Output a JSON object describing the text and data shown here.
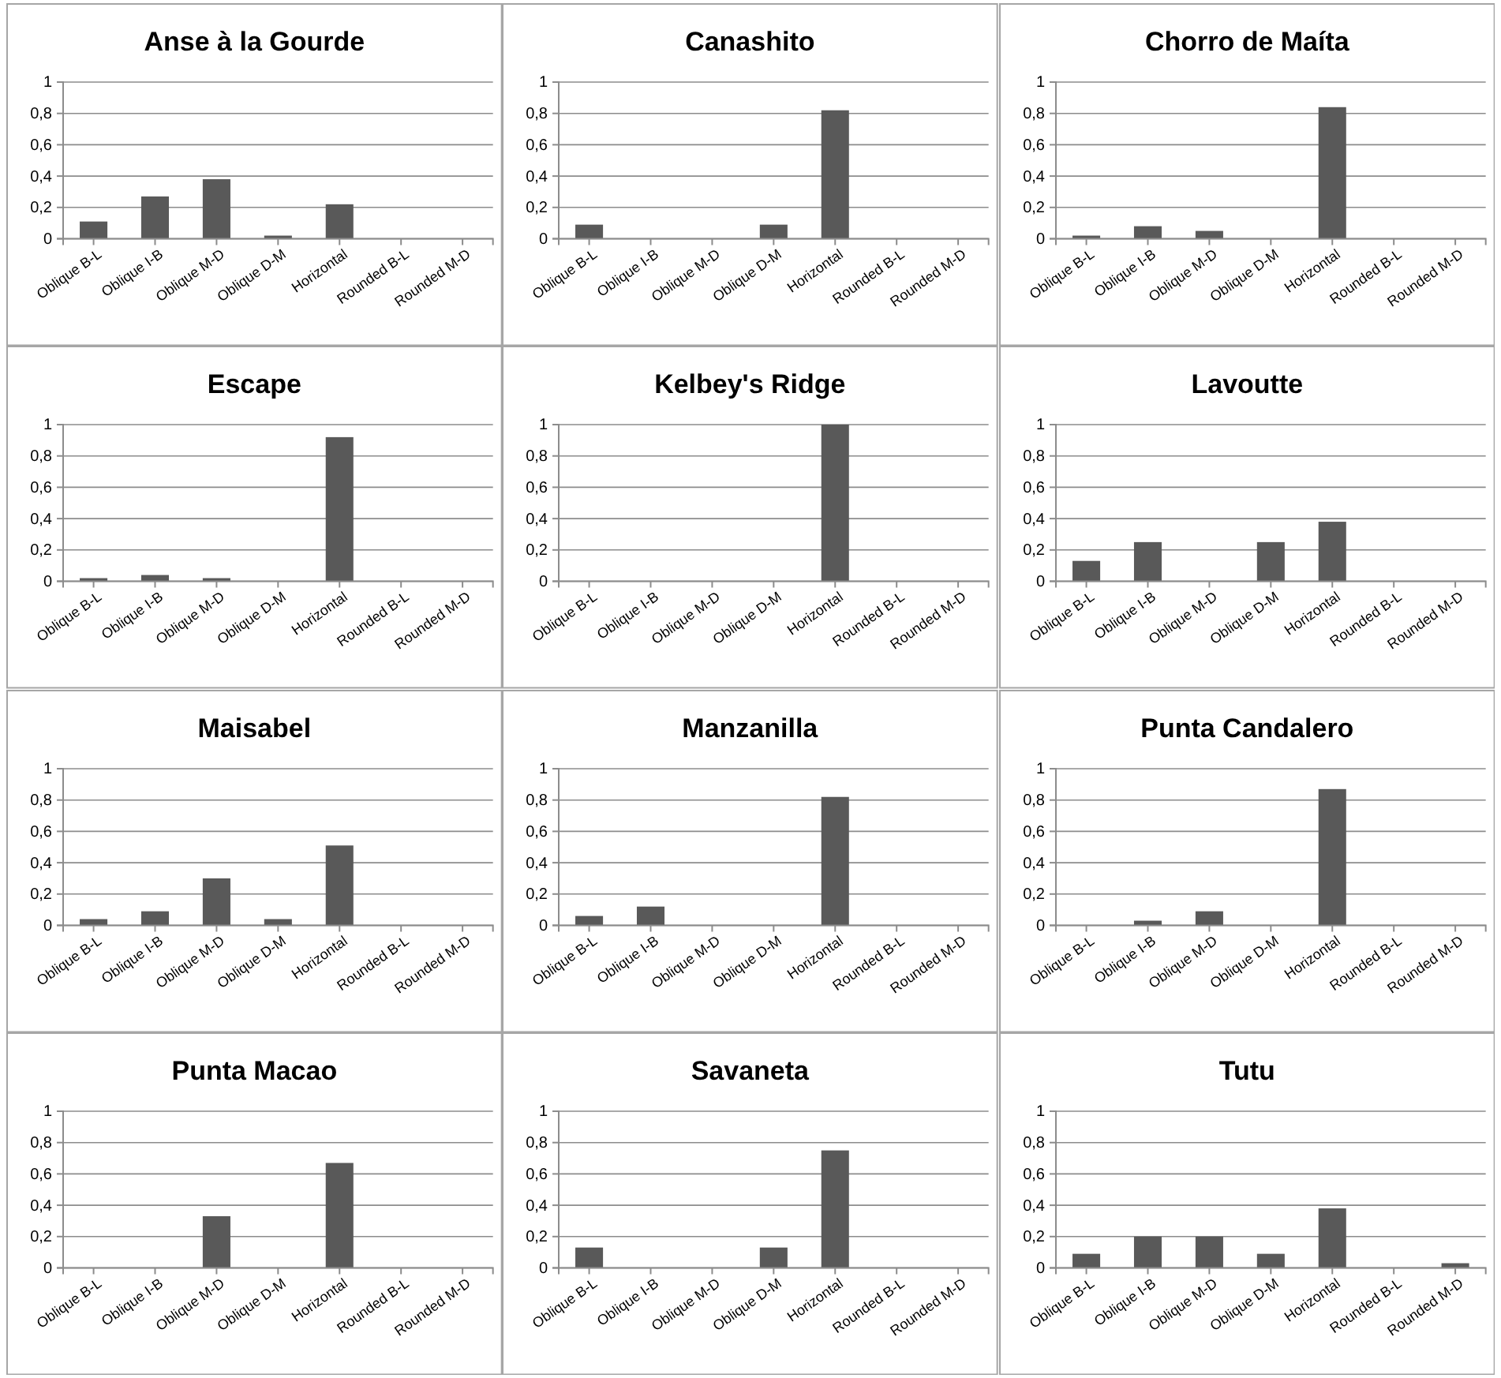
{
  "chart_data": [
    {
      "type": "bar",
      "title": "Anse à la Gourde",
      "categories": [
        "Oblique B-L",
        "Oblique I-B",
        "Oblique M-D",
        "Oblique D-M",
        "Horizontal",
        "Rounded B-L",
        "Rounded M-D"
      ],
      "values": [
        0.11,
        0.27,
        0.38,
        0.02,
        0.22,
        0,
        0
      ],
      "color": "#595959",
      "ylim": [
        0,
        1
      ],
      "yticks": [
        {
          "value": 0,
          "label": "0"
        },
        {
          "value": 0.2,
          "label": "0,2"
        },
        {
          "value": 0.4,
          "label": "0,4"
        },
        {
          "value": 0.6,
          "label": "0,6"
        },
        {
          "value": 0.8,
          "label": "0,8"
        },
        {
          "value": 1,
          "label": "1"
        }
      ],
      "grid": "y"
    },
    {
      "type": "bar",
      "title": "Canashito",
      "categories": [
        "Oblique B-L",
        "Oblique I-B",
        "Oblique M-D",
        "Oblique D-M",
        "Horizontal",
        "Rounded B-L",
        "Rounded M-D"
      ],
      "values": [
        0.09,
        0,
        0,
        0.09,
        0.82,
        0,
        0
      ],
      "color": "#595959",
      "ylim": [
        0,
        1
      ],
      "yticks": [
        {
          "value": 0,
          "label": "0"
        },
        {
          "value": 0.2,
          "label": "0,2"
        },
        {
          "value": 0.4,
          "label": "0,4"
        },
        {
          "value": 0.6,
          "label": "0,6"
        },
        {
          "value": 0.8,
          "label": "0,8"
        },
        {
          "value": 1,
          "label": "1"
        }
      ],
      "grid": "y"
    },
    {
      "type": "bar",
      "title": "Chorro de Maíta",
      "categories": [
        "Oblique B-L",
        "Oblique I-B",
        "Oblique M-D",
        "Oblique D-M",
        "Horizontal",
        "Rounded B-L",
        "Rounded M-D"
      ],
      "values": [
        0.02,
        0.08,
        0.05,
        0,
        0.84,
        0,
        0
      ],
      "color": "#595959",
      "ylim": [
        0,
        1
      ],
      "yticks": [
        {
          "value": 0,
          "label": "0"
        },
        {
          "value": 0.2,
          "label": "0,2"
        },
        {
          "value": 0.4,
          "label": "0,4"
        },
        {
          "value": 0.6,
          "label": "0,6"
        },
        {
          "value": 0.8,
          "label": "0,8"
        },
        {
          "value": 1,
          "label": "1"
        }
      ],
      "grid": "y"
    },
    {
      "type": "bar",
      "title": "Escape",
      "categories": [
        "Oblique B-L",
        "Oblique I-B",
        "Oblique M-D",
        "Oblique D-M",
        "Horizontal",
        "Rounded B-L",
        "Rounded M-D"
      ],
      "values": [
        0.02,
        0.04,
        0.02,
        0,
        0.92,
        0,
        0
      ],
      "color": "#595959",
      "ylim": [
        0,
        1
      ],
      "yticks": [
        {
          "value": 0,
          "label": "0"
        },
        {
          "value": 0.2,
          "label": "0,2"
        },
        {
          "value": 0.4,
          "label": "0,4"
        },
        {
          "value": 0.6,
          "label": "0,6"
        },
        {
          "value": 0.8,
          "label": "0,8"
        },
        {
          "value": 1,
          "label": "1"
        }
      ],
      "grid": "y"
    },
    {
      "type": "bar",
      "title": "Kelbey's Ridge",
      "categories": [
        "Oblique B-L",
        "Oblique I-B",
        "Oblique M-D",
        "Oblique D-M",
        "Horizontal",
        "Rounded B-L",
        "Rounded M-D"
      ],
      "values": [
        0,
        0,
        0,
        0,
        1,
        0,
        0
      ],
      "color": "#595959",
      "ylim": [
        0,
        1
      ],
      "yticks": [
        {
          "value": 0,
          "label": "0"
        },
        {
          "value": 0.2,
          "label": "0,2"
        },
        {
          "value": 0.4,
          "label": "0,4"
        },
        {
          "value": 0.6,
          "label": "0,6"
        },
        {
          "value": 0.8,
          "label": "0,8"
        },
        {
          "value": 1,
          "label": "1"
        }
      ],
      "grid": "y"
    },
    {
      "type": "bar",
      "title": "Lavoutte",
      "categories": [
        "Oblique B-L",
        "Oblique I-B",
        "Oblique M-D",
        "Oblique D-M",
        "Horizontal",
        "Rounded B-L",
        "Rounded M-D"
      ],
      "values": [
        0.13,
        0.25,
        0,
        0.25,
        0.38,
        0,
        0
      ],
      "color": "#595959",
      "ylim": [
        0,
        1
      ],
      "yticks": [
        {
          "value": 0,
          "label": "0"
        },
        {
          "value": 0.2,
          "label": "0,2"
        },
        {
          "value": 0.4,
          "label": "0,4"
        },
        {
          "value": 0.6,
          "label": "0,6"
        },
        {
          "value": 0.8,
          "label": "0,8"
        },
        {
          "value": 1,
          "label": "1"
        }
      ],
      "grid": "y"
    },
    {
      "type": "bar",
      "title": "Maisabel",
      "categories": [
        "Oblique B-L",
        "Oblique I-B",
        "Oblique M-D",
        "Oblique D-M",
        "Horizontal",
        "Rounded B-L",
        "Rounded M-D"
      ],
      "values": [
        0.04,
        0.09,
        0.3,
        0.04,
        0.51,
        0,
        0
      ],
      "color": "#595959",
      "ylim": [
        0,
        1
      ],
      "yticks": [
        {
          "value": 0,
          "label": "0"
        },
        {
          "value": 0.2,
          "label": "0,2"
        },
        {
          "value": 0.4,
          "label": "0,4"
        },
        {
          "value": 0.6,
          "label": "0,6"
        },
        {
          "value": 0.8,
          "label": "0,8"
        },
        {
          "value": 1,
          "label": "1"
        }
      ],
      "grid": "y"
    },
    {
      "type": "bar",
      "title": "Manzanilla",
      "categories": [
        "Oblique B-L",
        "Oblique I-B",
        "Oblique M-D",
        "Oblique D-M",
        "Horizontal",
        "Rounded B-L",
        "Rounded M-D"
      ],
      "values": [
        0.06,
        0.12,
        0,
        0,
        0.82,
        0,
        0
      ],
      "color": "#595959",
      "ylim": [
        0,
        1
      ],
      "yticks": [
        {
          "value": 0,
          "label": "0"
        },
        {
          "value": 0.2,
          "label": "0,2"
        },
        {
          "value": 0.4,
          "label": "0,4"
        },
        {
          "value": 0.6,
          "label": "0,6"
        },
        {
          "value": 0.8,
          "label": "0,8"
        },
        {
          "value": 1,
          "label": "1"
        }
      ],
      "grid": "y"
    },
    {
      "type": "bar",
      "title": "Punta Candalero",
      "categories": [
        "Oblique B-L",
        "Oblique I-B",
        "Oblique M-D",
        "Oblique D-M",
        "Horizontal",
        "Rounded B-L",
        "Rounded M-D"
      ],
      "values": [
        0,
        0.03,
        0.09,
        0,
        0.87,
        0,
        0
      ],
      "color": "#595959",
      "ylim": [
        0,
        1
      ],
      "yticks": [
        {
          "value": 0,
          "label": "0"
        },
        {
          "value": 0.2,
          "label": "0,2"
        },
        {
          "value": 0.4,
          "label": "0,4"
        },
        {
          "value": 0.6,
          "label": "0,6"
        },
        {
          "value": 0.8,
          "label": "0,8"
        },
        {
          "value": 1,
          "label": "1"
        }
      ],
      "grid": "y"
    },
    {
      "type": "bar",
      "title": "Punta Macao",
      "categories": [
        "Oblique B-L",
        "Oblique I-B",
        "Oblique M-D",
        "Oblique D-M",
        "Horizontal",
        "Rounded B-L",
        "Rounded M-D"
      ],
      "values": [
        0,
        0,
        0.33,
        0,
        0.67,
        0,
        0
      ],
      "color": "#595959",
      "ylim": [
        0,
        1
      ],
      "yticks": [
        {
          "value": 0,
          "label": "0"
        },
        {
          "value": 0.2,
          "label": "0,2"
        },
        {
          "value": 0.4,
          "label": "0,4"
        },
        {
          "value": 0.6,
          "label": "0,6"
        },
        {
          "value": 0.8,
          "label": "0,8"
        },
        {
          "value": 1,
          "label": "1"
        }
      ],
      "grid": "y"
    },
    {
      "type": "bar",
      "title": "Savaneta",
      "categories": [
        "Oblique B-L",
        "Oblique I-B",
        "Oblique M-D",
        "Oblique D-M",
        "Horizontal",
        "Rounded B-L",
        "Rounded M-D"
      ],
      "values": [
        0.13,
        0,
        0,
        0.13,
        0.75,
        0,
        0
      ],
      "color": "#595959",
      "ylim": [
        0,
        1
      ],
      "yticks": [
        {
          "value": 0,
          "label": "0"
        },
        {
          "value": 0.2,
          "label": "0,2"
        },
        {
          "value": 0.4,
          "label": "0,4"
        },
        {
          "value": 0.6,
          "label": "0,6"
        },
        {
          "value": 0.8,
          "label": "0,8"
        },
        {
          "value": 1,
          "label": "1"
        }
      ],
      "grid": "y"
    },
    {
      "type": "bar",
      "title": "Tutu",
      "categories": [
        "Oblique B-L",
        "Oblique I-B",
        "Oblique M-D",
        "Oblique D-M",
        "Horizontal",
        "Rounded B-L",
        "Rounded M-D"
      ],
      "values": [
        0.09,
        0.2,
        0.2,
        0.09,
        0.38,
        0,
        0.03
      ],
      "color": "#595959",
      "ylim": [
        0,
        1
      ],
      "yticks": [
        {
          "value": 0,
          "label": "0"
        },
        {
          "value": 0.2,
          "label": "0,2"
        },
        {
          "value": 0.4,
          "label": "0,4"
        },
        {
          "value": 0.6,
          "label": "0,6"
        },
        {
          "value": 0.8,
          "label": "0,8"
        },
        {
          "value": 1,
          "label": "1"
        }
      ],
      "grid": "y"
    }
  ]
}
